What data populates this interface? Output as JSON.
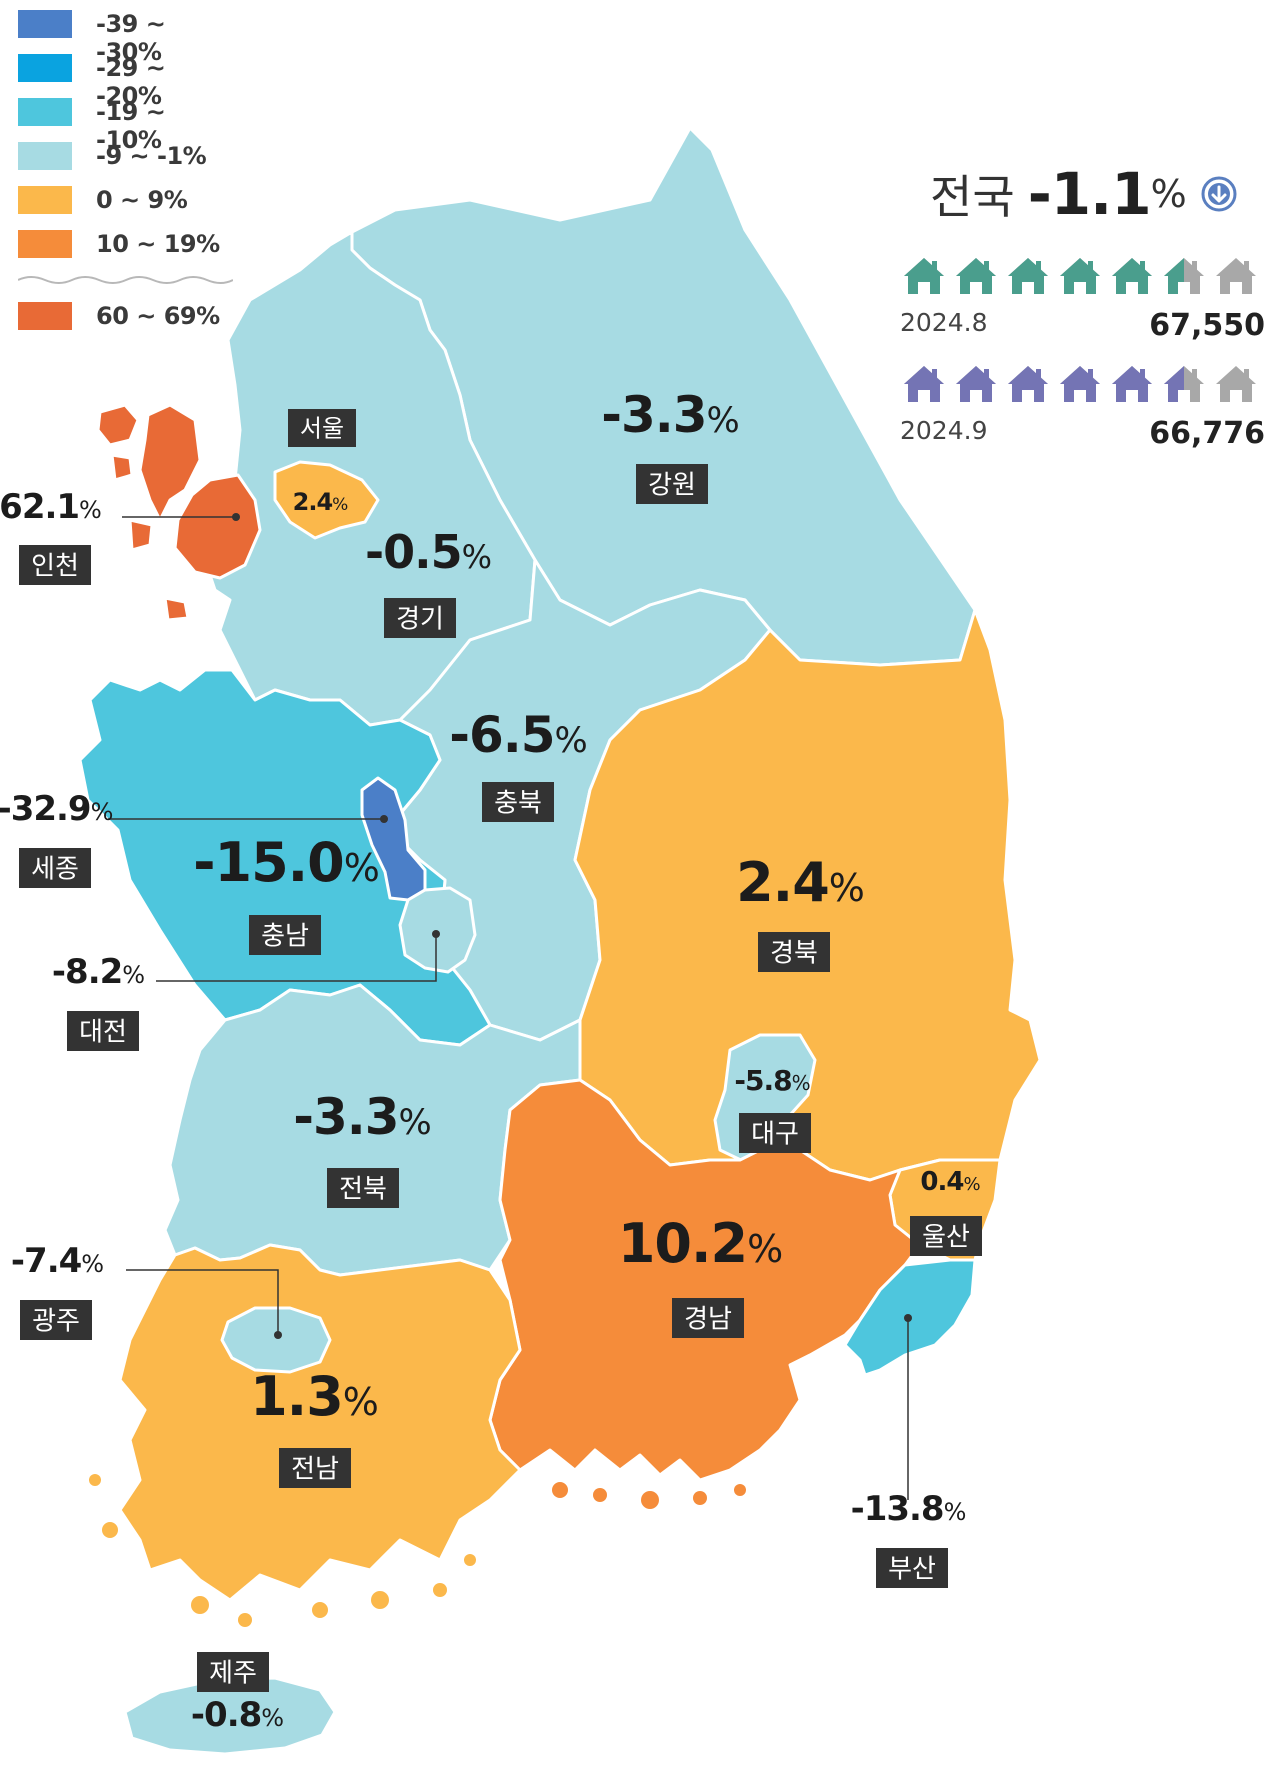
{
  "colors": {
    "bin_neg39_30": "#4b7fc8",
    "bin_neg29_20": "#0aa3e0",
    "bin_neg19_10": "#4ec6dd",
    "bin_neg9_1": "#a7dbe3",
    "bin_0_9": "#fbb84b",
    "bin_10_19": "#f58c3a",
    "bin_60_69": "#e86a36",
    "label_box": "#333333",
    "aug_house": "#4a9e8d",
    "sep_house": "#7474b4",
    "grey_house": "#a8a8a8",
    "national_icon": "#5a7fc0"
  },
  "legend": {
    "items": [
      {
        "label": "-39 ~ -30%",
        "color": "#4b7fc8"
      },
      {
        "label": "-29 ~ -20%",
        "color": "#0aa3e0"
      },
      {
        "label": "-19 ~ -10%",
        "color": "#4ec6dd"
      },
      {
        "label": "-9 ~ -1%",
        "color": "#a7dbe3"
      },
      {
        "label": "0 ~ 9%",
        "color": "#fbb84b"
      },
      {
        "label": "10 ~ 19%",
        "color": "#f58c3a"
      }
    ],
    "break_item": {
      "label": "60 ~ 69%",
      "color": "#e86a36"
    }
  },
  "national": {
    "label": "전국",
    "value": "-1.1",
    "unit": "%",
    "direction_icon": "down-arrow-circle-icon",
    "rows": [
      {
        "period": "2024.8",
        "count": "67,550",
        "house_fill": 5.5,
        "house_total": 7,
        "color": "#4a9e8d"
      },
      {
        "period": "2024.9",
        "count": "66,776",
        "house_fill": 5.5,
        "house_total": 7,
        "color": "#7474b4"
      }
    ]
  },
  "regions": {
    "seoul": {
      "name": "서울",
      "value": "2.4",
      "unit": "%",
      "color": "#fbb84b"
    },
    "gyeonggi": {
      "name": "경기",
      "value": "-0.5",
      "unit": "%",
      "color": "#a7dbe3"
    },
    "incheon": {
      "name": "인천",
      "value": "62.1",
      "unit": "%",
      "color": "#e86a36"
    },
    "gangwon": {
      "name": "강원",
      "value": "-3.3",
      "unit": "%",
      "color": "#a7dbe3"
    },
    "chungbuk": {
      "name": "충북",
      "value": "-6.5",
      "unit": "%",
      "color": "#a7dbe3"
    },
    "chungnam": {
      "name": "충남",
      "value": "-15.0",
      "unit": "%",
      "color": "#4ec6dd"
    },
    "sejong": {
      "name": "세종",
      "value": "-32.9",
      "unit": "%",
      "color": "#4b7fc8"
    },
    "daejeon": {
      "name": "대전",
      "value": "-8.2",
      "unit": "%",
      "color": "#a7dbe3"
    },
    "gyeongbuk": {
      "name": "경북",
      "value": "2.4",
      "unit": "%",
      "color": "#fbb84b"
    },
    "daegu": {
      "name": "대구",
      "value": "-5.8",
      "unit": "%",
      "color": "#a7dbe3"
    },
    "jeonbuk": {
      "name": "전북",
      "value": "-3.3",
      "unit": "%",
      "color": "#a7dbe3"
    },
    "gyeongnam": {
      "name": "경남",
      "value": "10.2",
      "unit": "%",
      "color": "#f58c3a"
    },
    "ulsan": {
      "name": "울산",
      "value": "0.4",
      "unit": "%",
      "color": "#fbb84b"
    },
    "busan": {
      "name": "부산",
      "value": "-13.8",
      "unit": "%",
      "color": "#4ec6dd"
    },
    "gwangju": {
      "name": "광주",
      "value": "-7.4",
      "unit": "%",
      "color": "#a7dbe3"
    },
    "jeonnam": {
      "name": "전남",
      "value": "1.3",
      "unit": "%",
      "color": "#fbb84b"
    },
    "jeju": {
      "name": "제주",
      "value": "-0.8",
      "unit": "%",
      "color": "#a7dbe3"
    }
  }
}
